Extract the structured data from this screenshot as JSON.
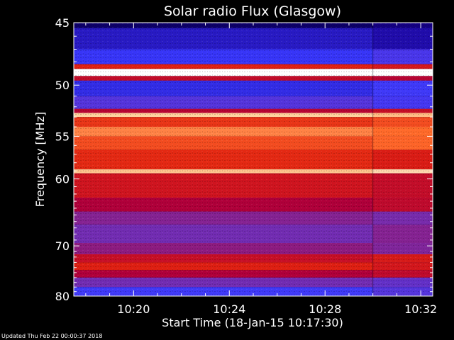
{
  "chart_data": {
    "type": "heatmap",
    "title": "Solar radio Flux (Glasgow)",
    "xlabel": "Start Time (18-Jan-15 10:17:30)",
    "ylabel": "Frequency [MHz]",
    "x_ticks": [
      "10:20",
      "10:24",
      "10:28",
      "10:32"
    ],
    "x_range": [
      "10:17:30",
      "10:32:30"
    ],
    "x_tick_minutes": [
      20,
      24,
      28,
      32
    ],
    "x_range_minutes": [
      17.5,
      32.5
    ],
    "y_ticks": [
      "45",
      "50",
      "55",
      "60",
      "70",
      "80"
    ],
    "y_tick_values": [
      45,
      50,
      55,
      60,
      70,
      80
    ],
    "y_range": [
      45,
      80
    ],
    "y_scale": "reciprocal",
    "y_direction": "increasing-downward",
    "grid": false,
    "colormap": [
      "#05004a",
      "#1a0096",
      "#3a3aff",
      "#7a2aa8",
      "#b0003a",
      "#e02010",
      "#ff6a2a",
      "#ffd09a",
      "#ffffff"
    ],
    "frequency_bands": [
      {
        "freq": [
          45.0,
          45.4
        ],
        "level": 0.05
      },
      {
        "freq": [
          45.4,
          47.0
        ],
        "level": 0.18
      },
      {
        "freq": [
          47.0,
          48.2
        ],
        "level": 0.24
      },
      {
        "freq": [
          48.2,
          48.6
        ],
        "level": 0.62
      },
      {
        "freq": [
          48.6,
          49.2
        ],
        "level": 1.0
      },
      {
        "freq": [
          49.2,
          49.6
        ],
        "level": 0.55
      },
      {
        "freq": [
          49.6,
          51.0
        ],
        "level": 0.22
      },
      {
        "freq": [
          51.0,
          52.2
        ],
        "level": 0.3
      },
      {
        "freq": [
          52.2,
          52.6
        ],
        "level": 0.52
      },
      {
        "freq": [
          52.6,
          53.0
        ],
        "level": 0.88
      },
      {
        "freq": [
          53.0,
          54.0
        ],
        "level": 0.66
      },
      {
        "freq": [
          54.0,
          55.0
        ],
        "level": 0.78
      },
      {
        "freq": [
          55.0,
          56.5
        ],
        "level": 0.7
      },
      {
        "freq": [
          56.5,
          58.8
        ],
        "level": 0.64
      },
      {
        "freq": [
          58.8,
          59.3
        ],
        "level": 0.86
      },
      {
        "freq": [
          59.3,
          62.5
        ],
        "level": 0.58
      },
      {
        "freq": [
          62.5,
          64.5
        ],
        "level": 0.5
      },
      {
        "freq": [
          64.5,
          66.5
        ],
        "level": 0.4
      },
      {
        "freq": [
          66.5,
          69.5
        ],
        "level": 0.36
      },
      {
        "freq": [
          69.5,
          71.5
        ],
        "level": 0.42
      },
      {
        "freq": [
          71.5,
          73.0
        ],
        "level": 0.56
      },
      {
        "freq": [
          73.0,
          74.5
        ],
        "level": 0.62
      },
      {
        "freq": [
          74.5,
          76.0
        ],
        "level": 0.5
      },
      {
        "freq": [
          76.0,
          78.0
        ],
        "level": 0.36
      },
      {
        "freq": [
          78.0,
          80.0
        ],
        "level": 0.26
      }
    ],
    "discontinuity_time": "10:30:00"
  },
  "footer": {
    "updated_text": "Updated Thu Feb 22 00:00:37 2018"
  }
}
